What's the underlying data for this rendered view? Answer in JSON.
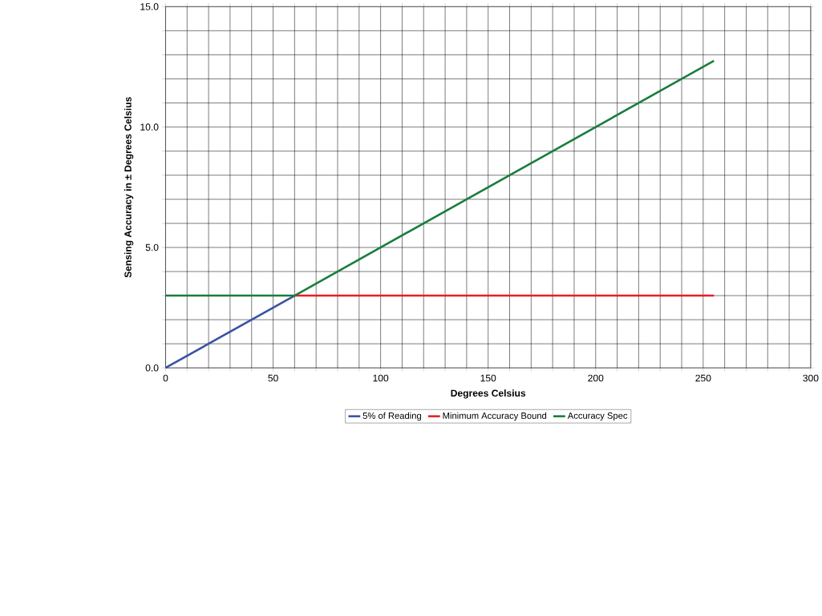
{
  "chart_data": {
    "type": "line",
    "xlabel": "Degrees Celsius",
    "ylabel": "Sensing Accuracy in ± Degrees Celsius",
    "xlim": [
      0,
      300
    ],
    "ylim": [
      0,
      15
    ],
    "xticks": [
      0,
      {
        "value": 10,
        "label": null
      },
      {
        "value": 20,
        "label": null
      },
      {
        "value": 30,
        "label": null
      },
      {
        "value": 40,
        "label": null
      },
      50,
      {
        "value": 60,
        "label": null
      },
      {
        "value": 70,
        "label": null
      },
      {
        "value": 80,
        "label": null
      },
      {
        "value": 90,
        "label": null
      },
      100,
      {
        "value": 110,
        "label": null
      },
      {
        "value": 120,
        "label": null
      },
      {
        "value": 130,
        "label": null
      },
      {
        "value": 140,
        "label": null
      },
      150,
      {
        "value": 160,
        "label": null
      },
      {
        "value": 170,
        "label": null
      },
      {
        "value": 180,
        "label": null
      },
      {
        "value": 190,
        "label": null
      },
      200,
      {
        "value": 210,
        "label": null
      },
      {
        "value": 220,
        "label": null
      },
      {
        "value": 230,
        "label": null
      },
      {
        "value": 240,
        "label": null
      },
      250,
      {
        "value": 260,
        "label": null
      },
      {
        "value": 270,
        "label": null
      },
      {
        "value": 280,
        "label": null
      },
      {
        "value": 290,
        "label": null
      },
      300
    ],
    "yticks": [
      {
        "value": 0,
        "label": "0.0"
      },
      {
        "value": 1,
        "label": null
      },
      {
        "value": 2,
        "label": null
      },
      {
        "value": 3,
        "label": null
      },
      {
        "value": 4,
        "label": null
      },
      {
        "value": 5,
        "label": "5.0"
      },
      {
        "value": 6,
        "label": null
      },
      {
        "value": 7,
        "label": null
      },
      {
        "value": 8,
        "label": null
      },
      {
        "value": 9,
        "label": null
      },
      {
        "value": 10,
        "label": "10.0"
      },
      {
        "value": 11,
        "label": null
      },
      {
        "value": 12,
        "label": null
      },
      {
        "value": 13,
        "label": null
      },
      {
        "value": 14,
        "label": null
      },
      {
        "value": 15,
        "label": "15.0"
      }
    ],
    "grid": true,
    "legend": "bottom",
    "series": [
      {
        "name": "5% of Reading",
        "color": "#3953a4",
        "x": [
          0,
          60
        ],
        "values": [
          0,
          3
        ]
      },
      {
        "name": "Minimum Accuracy Bound",
        "color": "#ed1c24",
        "x": [
          60,
          255
        ],
        "values": [
          3,
          3
        ]
      },
      {
        "name": "Accuracy Spec",
        "color": "#1a7d3c",
        "x": [
          0,
          60,
          255
        ],
        "values": [
          3,
          3,
          12.75
        ]
      }
    ]
  }
}
